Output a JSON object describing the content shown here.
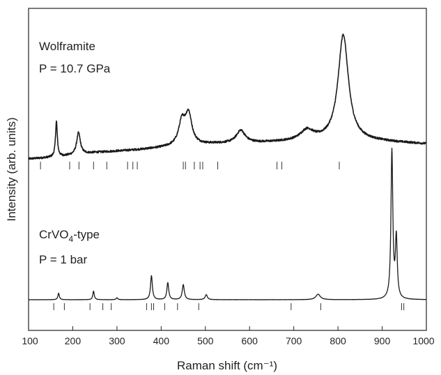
{
  "chart_data": {
    "type": "line",
    "xlabel": "Raman shift (cm⁻¹)",
    "ylabel": "Intensity (arb. units)",
    "xlim": [
      100,
      1000
    ],
    "x_ticks": [
      100,
      200,
      300,
      400,
      500,
      600,
      700,
      800,
      900,
      1000
    ],
    "y_ticks_labeled": false,
    "grid": false,
    "annotations": [
      {
        "line1": "Wolframite",
        "line2": "P = 10.7 GPa"
      },
      {
        "line1_pre": "CrVO",
        "line1_sub": "4",
        "line1_post": "-type",
        "line2": "P = 1 bar"
      }
    ],
    "series": [
      {
        "baseline": [
          [
            100,
            2.0
          ],
          [
            160,
            2.3
          ],
          [
            250,
            3.1
          ],
          [
            350,
            3.6
          ],
          [
            440,
            4.2
          ],
          [
            520,
            4.6
          ],
          [
            620,
            4.8
          ],
          [
            700,
            5.0
          ],
          [
            800,
            5.2
          ],
          [
            900,
            5.0
          ],
          [
            1000,
            4.6
          ]
        ],
        "peaks": [
          {
            "center": 163,
            "height": 6.2,
            "width": 2.5
          },
          {
            "center": 213,
            "height": 3.8,
            "width": 5
          },
          {
            "center": 447,
            "height": 4.0,
            "width": 9
          },
          {
            "center": 462,
            "height": 5.2,
            "width": 9
          },
          {
            "center": 580,
            "height": 2.2,
            "width": 12
          },
          {
            "center": 730,
            "height": 1.8,
            "width": 18
          },
          {
            "center": 812,
            "height": 18.5,
            "width": 14
          }
        ],
        "tick_marks": [
          127,
          193,
          214,
          247,
          277,
          324,
          336,
          346,
          450,
          455,
          475,
          488,
          494,
          528,
          662,
          673,
          803
        ]
      },
      {
        "baseline": [
          [
            100,
            1.0
          ],
          [
            1000,
            1.0
          ]
        ],
        "peaks": [
          {
            "center": 168,
            "height": 1.3,
            "width": 2
          },
          {
            "center": 247,
            "height": 1.7,
            "width": 2
          },
          {
            "center": 300,
            "height": 0.4,
            "width": 2
          },
          {
            "center": 378,
            "height": 4.8,
            "width": 2.5
          },
          {
            "center": 415,
            "height": 3.4,
            "width": 2.5
          },
          {
            "center": 450,
            "height": 3.0,
            "width": 2.8
          },
          {
            "center": 502,
            "height": 1.0,
            "width": 3
          },
          {
            "center": 755,
            "height": 1.1,
            "width": 6
          },
          {
            "center": 922,
            "height": 29.5,
            "width": 2.5
          },
          {
            "center": 932,
            "height": 12.0,
            "width": 2.5
          }
        ],
        "tick_marks": [
          157,
          181,
          239,
          268,
          287,
          367,
          378,
          383,
          408,
          437,
          485,
          694,
          761,
          944,
          949
        ]
      }
    ]
  }
}
